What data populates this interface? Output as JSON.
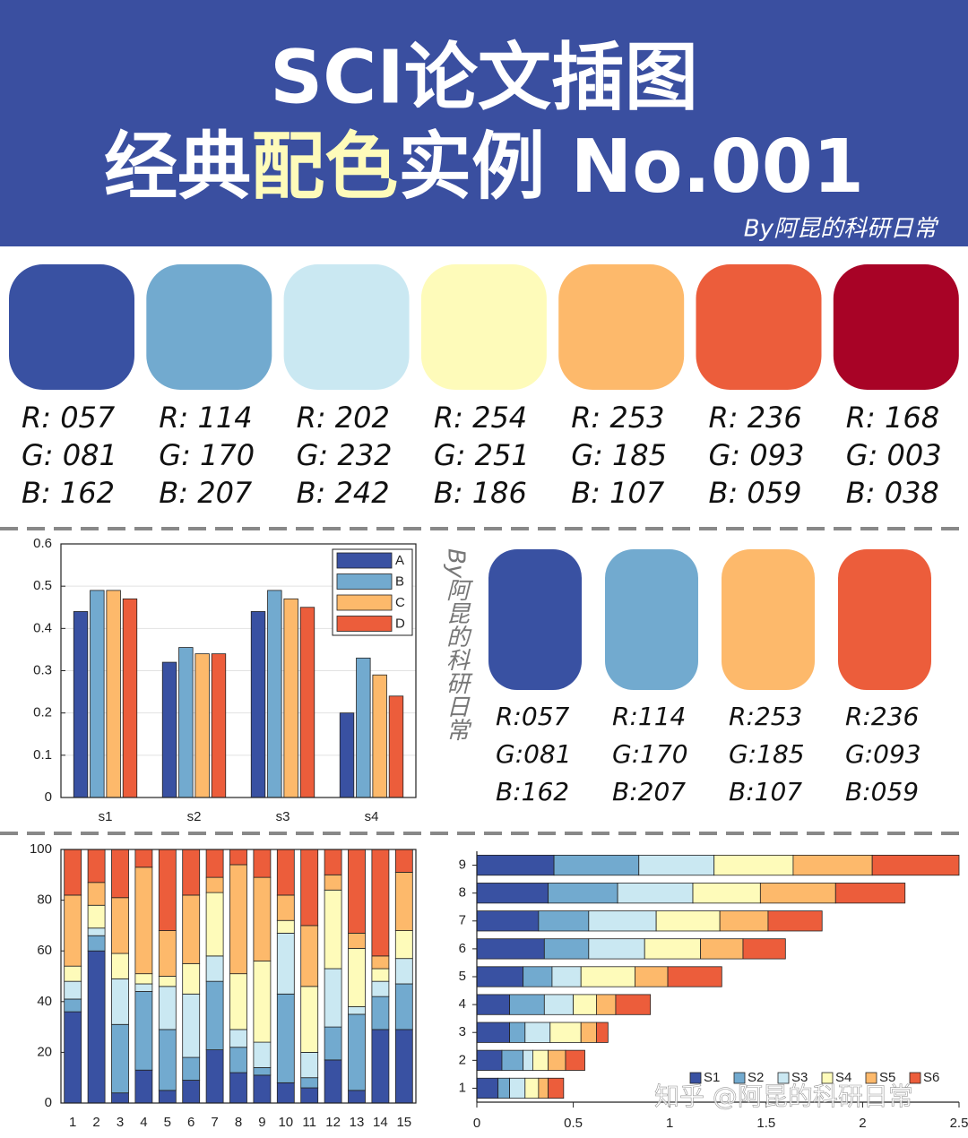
{
  "header": {
    "title_line1": "SCI论文插图",
    "title_line2": [
      "经典",
      "配色",
      "实例 No.001"
    ],
    "byline": "By阿昆的科研日常"
  },
  "palette": [
    {
      "color": "#3951a2",
      "r": "R: 057",
      "g": "G: 081",
      "b": "B: 162"
    },
    {
      "color": "#72aacf",
      "r": "R: 114",
      "g": "G: 170",
      "b": "B: 207"
    },
    {
      "color": "#cae8f2",
      "r": "R: 202",
      "g": "G: 232",
      "b": "B: 242"
    },
    {
      "color": "#fefbba",
      "r": "R: 254",
      "g": "G: 251",
      "b": "B: 186"
    },
    {
      "color": "#fdb96b",
      "r": "R: 253",
      "g": "G: 185",
      "b": "B: 107"
    },
    {
      "color": "#ec5d3b",
      "r": "R: 236",
      "g": "G: 093",
      "b": "B: 059"
    },
    {
      "color": "#a80326",
      "r": "R: 168",
      "g": "G: 003",
      "b": "B: 038"
    }
  ],
  "palette_small": [
    {
      "color": "#3951a2",
      "r": "R:057",
      "g": "G:081",
      "b": "B:162"
    },
    {
      "color": "#72aacf",
      "r": "R:114",
      "g": "G:170",
      "b": "B:207"
    },
    {
      "color": "#fdb96b",
      "r": "R:253",
      "g": "G:185",
      "b": "B:107"
    },
    {
      "color": "#ec5d3b",
      "r": "R:236",
      "g": "G:093",
      "b": "B:059"
    }
  ],
  "side_byline": "By阿昆的科研日常",
  "watermark": "知乎 @阿昆的科研日常",
  "chart_data": [
    {
      "type": "bar",
      "stacked": false,
      "frame": true,
      "grid": true,
      "legend": "upper right",
      "categories": [
        "s1",
        "s2",
        "s3",
        "s4"
      ],
      "series": [
        {
          "name": "A",
          "color": "#3951a2",
          "values": [
            0.44,
            0.32,
            0.44,
            0.2
          ]
        },
        {
          "name": "B",
          "color": "#72aacf",
          "values": [
            0.49,
            0.355,
            0.49,
            0.33
          ]
        },
        {
          "name": "C",
          "color": "#fdb96b",
          "values": [
            0.49,
            0.34,
            0.47,
            0.29
          ]
        },
        {
          "name": "D",
          "color": "#ec5d3b",
          "values": [
            0.47,
            0.34,
            0.45,
            0.24
          ]
        }
      ],
      "ylim": [
        0,
        0.6
      ],
      "yticks": [
        0,
        0.1,
        0.2,
        0.3,
        0.4,
        0.5,
        0.6
      ]
    },
    {
      "type": "bar",
      "stacked": true,
      "frame": true,
      "grid": false,
      "categories": [
        "1",
        "2",
        "3",
        "4",
        "5",
        "6",
        "7",
        "8",
        "9",
        "10",
        "11",
        "12",
        "13",
        "14",
        "15"
      ],
      "series": [
        {
          "color": "#3951a2",
          "values": [
            36,
            60,
            4,
            13,
            5,
            9,
            21,
            12,
            11,
            8,
            6,
            17,
            5,
            29,
            29
          ]
        },
        {
          "color": "#72aacf",
          "values": [
            5,
            6,
            27,
            31,
            24,
            9,
            27,
            10,
            3,
            35,
            4,
            13,
            30,
            13,
            18
          ]
        },
        {
          "color": "#cae8f2",
          "values": [
            7,
            3,
            18,
            3,
            17,
            25,
            10,
            7,
            10,
            24,
            10,
            23,
            3,
            6,
            10
          ]
        },
        {
          "color": "#fefbba",
          "values": [
            6,
            9,
            10,
            4,
            4,
            12,
            25,
            22,
            32,
            5,
            26,
            31,
            23,
            5,
            11
          ]
        },
        {
          "color": "#fdb96b",
          "values": [
            28,
            9,
            22,
            42,
            18,
            27,
            6,
            43,
            33,
            10,
            24,
            6,
            6,
            5,
            23
          ]
        },
        {
          "color": "#ec5d3b",
          "values": [
            18,
            13,
            19,
            7,
            32,
            18,
            11,
            6,
            11,
            18,
            30,
            10,
            33,
            42,
            9
          ]
        }
      ],
      "ylim": [
        0,
        100
      ],
      "yticks": [
        0,
        20,
        40,
        60,
        80,
        100
      ]
    },
    {
      "type": "bar",
      "stacked": true,
      "orientation": "horizontal",
      "frame": false,
      "grid": false,
      "legend": "lower right",
      "categories": [
        "1",
        "2",
        "3",
        "4",
        "5",
        "6",
        "7",
        "8",
        "9"
      ],
      "series": [
        {
          "name": "S1",
          "color": "#3951a2",
          "values": [
            0.11,
            0.13,
            0.17,
            0.17,
            0.24,
            0.35,
            0.32,
            0.37,
            0.4
          ]
        },
        {
          "name": "S2",
          "color": "#72aacf",
          "values": [
            0.06,
            0.11,
            0.08,
            0.18,
            0.15,
            0.23,
            0.26,
            0.36,
            0.44
          ]
        },
        {
          "name": "S3",
          "color": "#cae8f2",
          "values": [
            0.08,
            0.05,
            0.13,
            0.15,
            0.15,
            0.29,
            0.35,
            0.39,
            0.39
          ]
        },
        {
          "name": "S4",
          "color": "#fefbba",
          "values": [
            0.07,
            0.08,
            0.16,
            0.12,
            0.28,
            0.29,
            0.33,
            0.35,
            0.41
          ]
        },
        {
          "name": "S5",
          "color": "#fdb96b",
          "values": [
            0.05,
            0.09,
            0.08,
            0.1,
            0.17,
            0.22,
            0.25,
            0.39,
            0.41
          ]
        },
        {
          "name": "S6",
          "color": "#ec5d3b",
          "values": [
            0.08,
            0.1,
            0.06,
            0.18,
            0.28,
            0.22,
            0.28,
            0.36,
            0.45
          ]
        }
      ],
      "xlim": [
        0,
        2.5
      ],
      "xticks": [
        0,
        0.5,
        1,
        1.5,
        2,
        2.5
      ]
    }
  ]
}
